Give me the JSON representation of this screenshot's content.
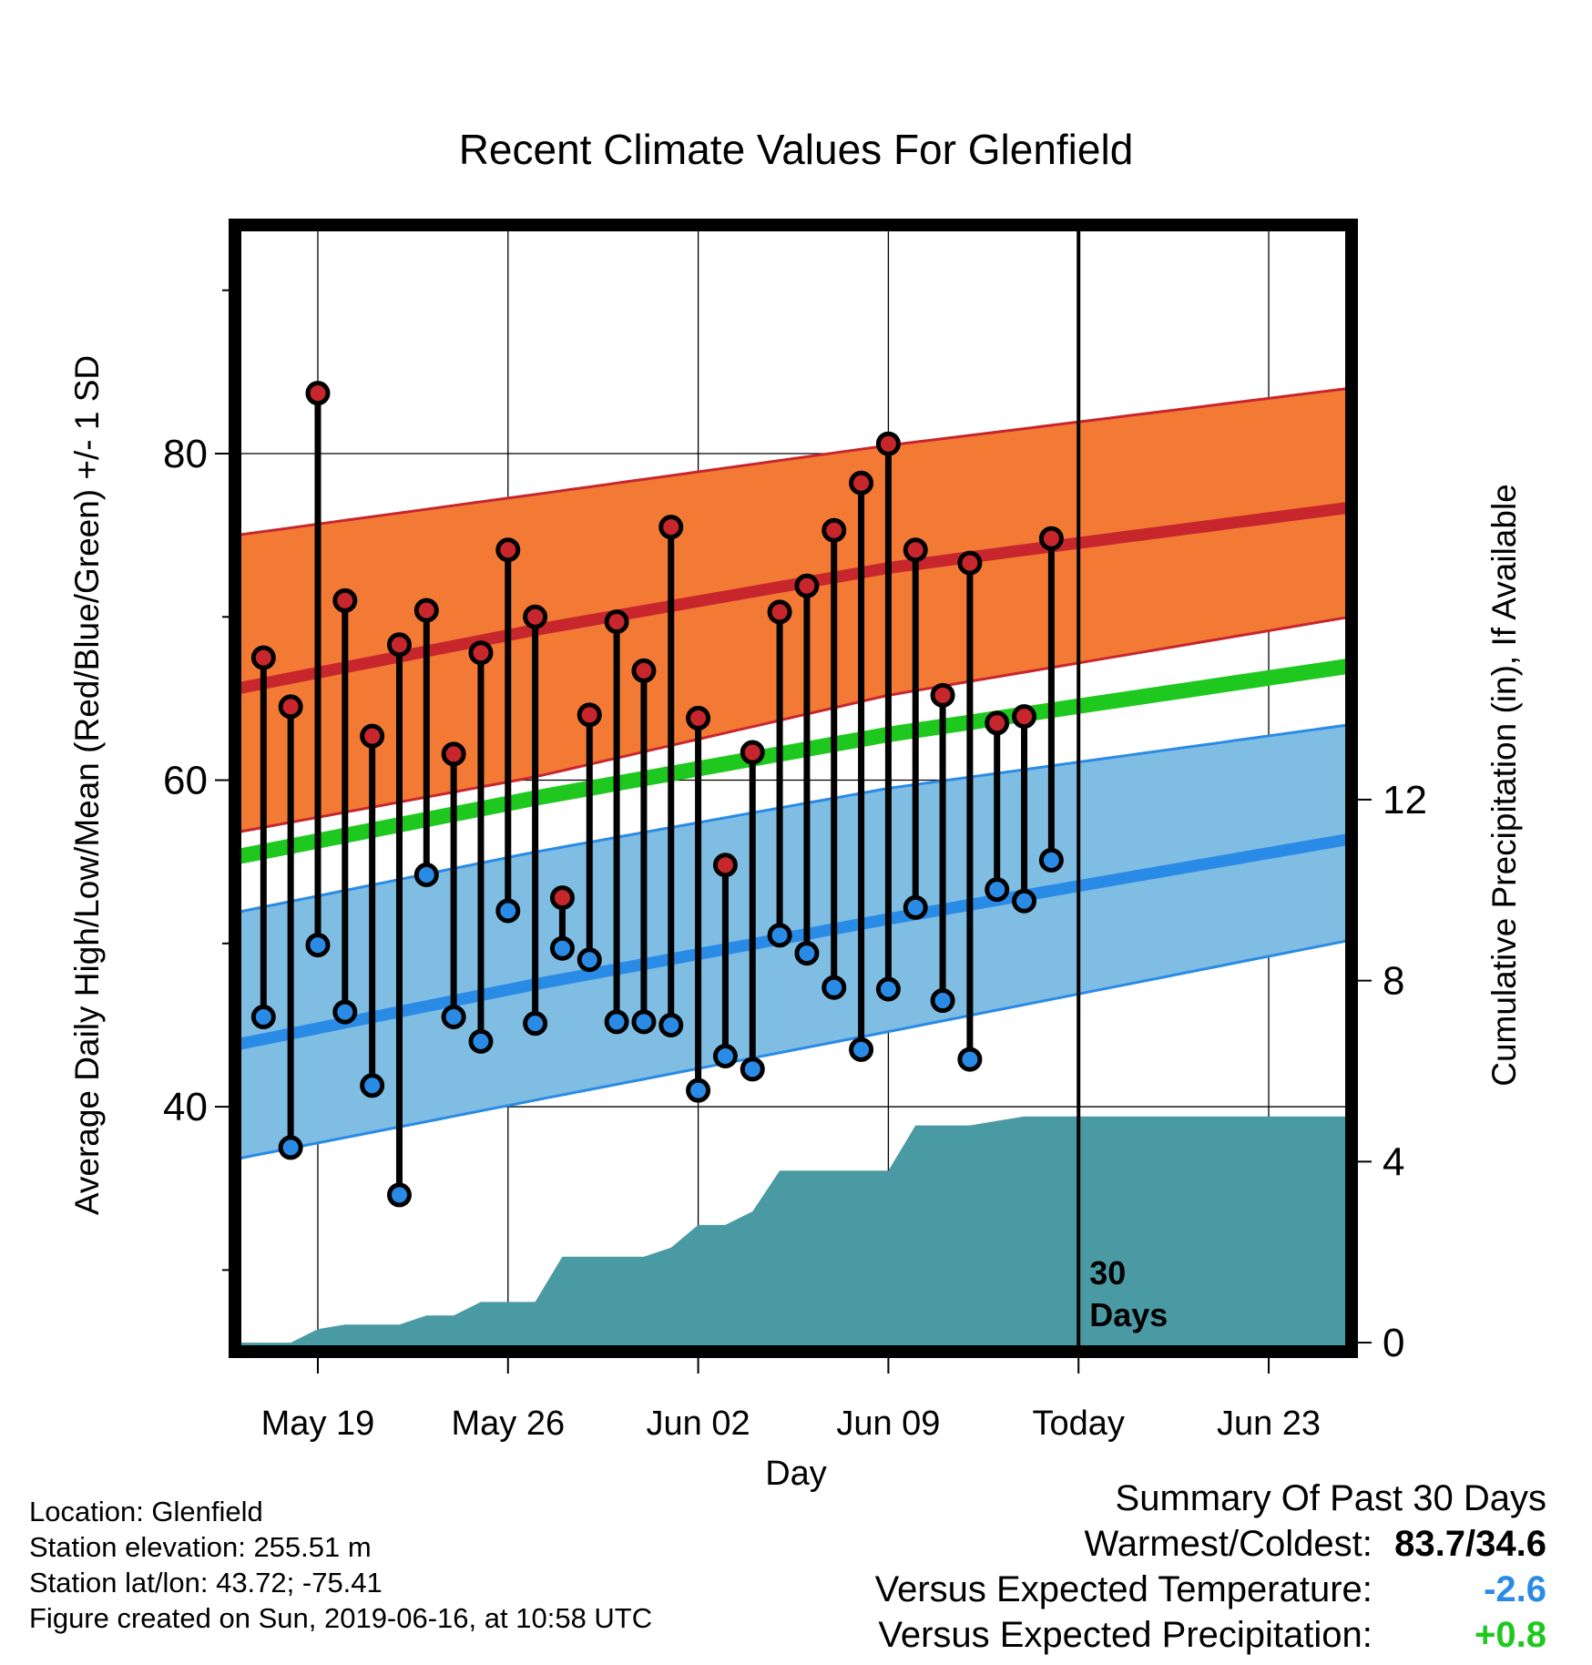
{
  "chart_data": {
    "type": "line",
    "title": "Recent Climate Values For Glenfield",
    "xlabel": "Day",
    "ylabel": "Average Daily High/Low/Mean (Red/Blue/Green) +/- 1 SD",
    "y2label": "Cumulative Precipitation (in), If Available",
    "xticks": [
      "May 19",
      "May 26",
      "Jun 02",
      "Jun 09",
      "Today",
      "Jun 23"
    ],
    "today_annotation": [
      "30",
      "Days"
    ],
    "ylim": [
      25,
      94
    ],
    "yticks": [
      40,
      60,
      80
    ],
    "y2lim": [
      -0.2,
      24.7
    ],
    "y2ticks": [
      0,
      4,
      8,
      12
    ],
    "grid": true,
    "days": [
      "May 17",
      "May 18",
      "May 19",
      "May 20",
      "May 21",
      "May 22",
      "May 23",
      "May 24",
      "May 25",
      "May 26",
      "May 27",
      "May 28",
      "May 29",
      "May 30",
      "May 31",
      "Jun 01",
      "Jun 02",
      "Jun 03",
      "Jun 04",
      "Jun 05",
      "Jun 06",
      "Jun 07",
      "Jun 08",
      "Jun 09",
      "Jun 10",
      "Jun 11",
      "Jun 12",
      "Jun 13",
      "Jun 14",
      "Jun 15"
    ],
    "series": [
      {
        "name": "High",
        "color": "#c8262d",
        "values": [
          67.5,
          64.5,
          83.7,
          71.0,
          62.7,
          68.3,
          70.4,
          61.6,
          67.8,
          74.1,
          70.0,
          52.8,
          64.0,
          69.7,
          66.7,
          75.5,
          63.8,
          54.8,
          61.7,
          70.3,
          71.9,
          75.3,
          78.2,
          80.6,
          74.1,
          65.2,
          73.3,
          63.5,
          63.9,
          74.8
        ]
      },
      {
        "name": "Low",
        "color": "#2a8be6",
        "values": [
          45.5,
          37.5,
          49.9,
          45.8,
          41.3,
          34.6,
          54.2,
          45.5,
          44.0,
          52.0,
          45.1,
          49.7,
          49.0,
          45.2,
          45.2,
          45.0,
          41.0,
          43.1,
          42.3,
          50.5,
          49.4,
          47.3,
          43.5,
          47.2,
          52.2,
          46.5,
          42.9,
          53.3,
          52.6,
          55.1
        ]
      }
    ],
    "normals": {
      "x": [
        "May 16",
        "May 27",
        "Jun 09",
        "Jun 26"
      ],
      "high_mean": [
        65.6,
        69.2,
        73.0,
        76.7
      ],
      "high_sd_upper": [
        75.0,
        77.5,
        80.5,
        84.0
      ],
      "high_sd_lower": [
        56.8,
        60.2,
        65.2,
        70.0
      ],
      "mean": [
        55.3,
        58.9,
        62.8,
        67.0
      ],
      "low_mean": [
        43.8,
        47.5,
        51.5,
        56.4
      ],
      "low_sd_upper": [
        51.9,
        55.6,
        59.5,
        63.4
      ],
      "low_sd_lower": [
        36.8,
        40.4,
        44.6,
        50.2
      ],
      "high_color": "#c8262d",
      "high_band_color": "#f37a34",
      "low_color": "#2a8be6",
      "low_band_color": "#7fbde3",
      "mean_color": "#1ec81e"
    },
    "precip_cumulative": {
      "name": "Cumulative Precipitation",
      "color": "#4a9aa3",
      "x": [
        "May 16",
        "May 18",
        "May 19",
        "May 20",
        "May 22",
        "May 23",
        "May 24",
        "May 25",
        "May 26",
        "May 27",
        "May 28",
        "May 29",
        "May 30",
        "May 31",
        "Jun 01",
        "Jun 02",
        "Jun 03",
        "Jun 04",
        "Jun 05",
        "Jun 06",
        "Jun 07",
        "Jun 08",
        "Jun 09",
        "Jun 10",
        "Jun 11",
        "Jun 12",
        "Jun 13",
        "Jun 14",
        "Jun 26"
      ],
      "values": [
        0,
        0,
        0.3,
        0.4,
        0.4,
        0.6,
        0.6,
        0.9,
        0.9,
        0.9,
        1.9,
        1.9,
        1.9,
        1.9,
        2.1,
        2.6,
        2.6,
        2.9,
        3.8,
        3.8,
        3.8,
        3.8,
        3.8,
        4.8,
        4.8,
        4.8,
        4.9,
        5.0,
        5.0
      ]
    }
  },
  "info": {
    "location": "Location: Glenfield",
    "elevation": "Station elevation: 255.51 m",
    "latlon": "Station lat/lon: 43.72; -75.41",
    "created": "Figure created on Sun, 2019-06-16, at 10:58 UTC"
  },
  "summary": {
    "title": "Summary Of Past 30 Days",
    "warmest_label": "Warmest/Coldest:",
    "warmest_value": "83.7/34.6",
    "temp_label": "Versus Expected Temperature:",
    "temp_value": "-2.6",
    "temp_color": "#2a8be6",
    "precip_label": "Versus Expected Precipitation:",
    "precip_value": "+0.8",
    "precip_color": "#1ec81e"
  }
}
